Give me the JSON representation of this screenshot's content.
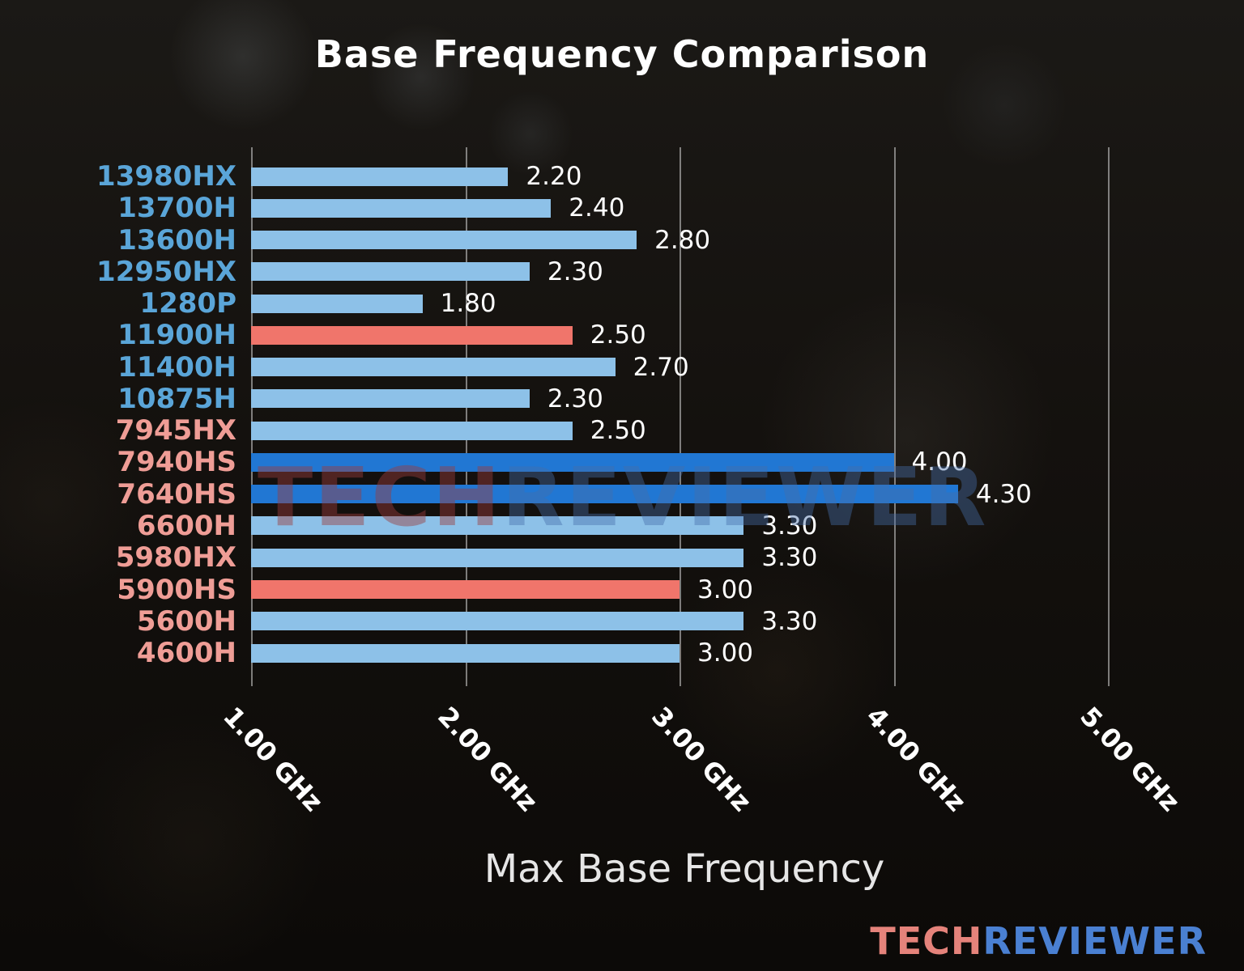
{
  "title": "Base Frequency Comparison",
  "watermark": {
    "part1": "TECH",
    "part2": "REVIEWER"
  },
  "logo": {
    "part1": "TECH",
    "part2": "REVIEWER"
  },
  "chart_data": {
    "type": "bar",
    "orientation": "horizontal",
    "title": "Base Frequency Comparison",
    "xlabel": "Max Base Frequency",
    "x_range": [
      1.0,
      5.05
    ],
    "grid": true,
    "legend": "none",
    "x_ticks": [
      {
        "value": 1.0,
        "label": "1.00 GHz"
      },
      {
        "value": 2.0,
        "label": "2.00 GHz"
      },
      {
        "value": 3.0,
        "label": "3.00 GHz"
      },
      {
        "value": 4.0,
        "label": "4.00 GHz"
      },
      {
        "value": 5.0,
        "label": "5.00 GHz"
      }
    ],
    "bars": [
      {
        "label": "13980HX",
        "value": 2.2,
        "value_label": "2.20",
        "bar_color": "light_blue",
        "label_color": "intel_blue"
      },
      {
        "label": "13700H",
        "value": 2.4,
        "value_label": "2.40",
        "bar_color": "light_blue",
        "label_color": "intel_blue"
      },
      {
        "label": "13600H",
        "value": 2.8,
        "value_label": "2.80",
        "bar_color": "light_blue",
        "label_color": "intel_blue"
      },
      {
        "label": "12950HX",
        "value": 2.3,
        "value_label": "2.30",
        "bar_color": "light_blue",
        "label_color": "intel_blue"
      },
      {
        "label": "1280P",
        "value": 1.8,
        "value_label": "1.80",
        "bar_color": "light_blue",
        "label_color": "intel_blue"
      },
      {
        "label": "11900H",
        "value": 2.5,
        "value_label": "2.50",
        "bar_color": "red",
        "label_color": "intel_blue"
      },
      {
        "label": "11400H",
        "value": 2.7,
        "value_label": "2.70",
        "bar_color": "light_blue",
        "label_color": "intel_blue"
      },
      {
        "label": "10875H",
        "value": 2.3,
        "value_label": "2.30",
        "bar_color": "light_blue",
        "label_color": "intel_blue"
      },
      {
        "label": "7945HX",
        "value": 2.5,
        "value_label": "2.50",
        "bar_color": "light_blue",
        "label_color": "amd_red"
      },
      {
        "label": "7940HS",
        "value": 4.0,
        "value_label": "4.00",
        "bar_color": "bright_blue",
        "label_color": "amd_red"
      },
      {
        "label": "7640HS",
        "value": 4.3,
        "value_label": "4.30",
        "bar_color": "bright_blue",
        "label_color": "amd_red"
      },
      {
        "label": "6600H",
        "value": 3.3,
        "value_label": "3.30",
        "bar_color": "light_blue",
        "label_color": "amd_red"
      },
      {
        "label": "5980HX",
        "value": 3.3,
        "value_label": "3.30",
        "bar_color": "light_blue",
        "label_color": "amd_red"
      },
      {
        "label": "5900HS",
        "value": 3.0,
        "value_label": "3.00",
        "bar_color": "red",
        "label_color": "amd_red"
      },
      {
        "label": "5600H",
        "value": 3.3,
        "value_label": "3.30",
        "bar_color": "light_blue",
        "label_color": "amd_red"
      },
      {
        "label": "4600H",
        "value": 3.0,
        "value_label": "3.00",
        "bar_color": "light_blue",
        "label_color": "amd_red"
      }
    ],
    "colors": {
      "light_blue": "#8dc1e8",
      "bright_blue": "#2177d3",
      "red": "#f0756b",
      "intel_blue": "#5aa5d8",
      "amd_red": "#ef9d96",
      "value_text": "#ffffff"
    }
  }
}
